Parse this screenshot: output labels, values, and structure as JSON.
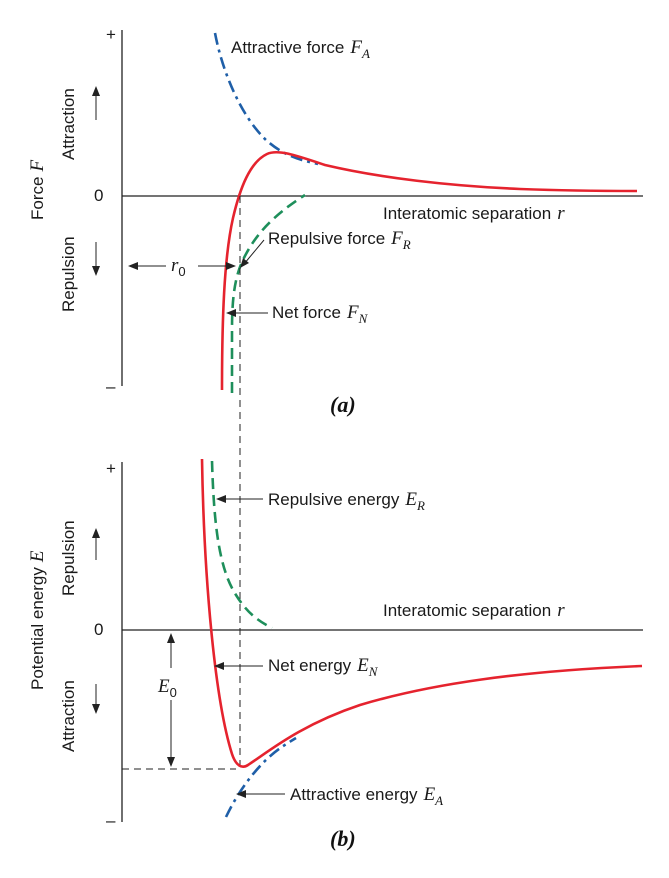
{
  "colors": {
    "net": "#e5232e",
    "attractive": "#1f5fa8",
    "repulsive": "#1e8f5b",
    "axis": "#222222"
  },
  "panel_a": {
    "caption": "(a)",
    "y_axis": {
      "title": "Force",
      "title_symbol": "F",
      "plus": "+",
      "minus": "–",
      "zero": "0",
      "upper_region": "Attraction",
      "lower_region": "Repulsion"
    },
    "x_axis_label": "Interatomic separation",
    "x_axis_symbol": "r",
    "labels": {
      "attractive": {
        "text": "Attractive force",
        "sym": "F",
        "sub": "A"
      },
      "repulsive": {
        "text": "Repulsive force",
        "sym": "F",
        "sub": "R"
      },
      "net": {
        "text": "Net force",
        "sym": "F",
        "sub": "N"
      },
      "r0": {
        "sym": "r",
        "sub": "0"
      }
    }
  },
  "panel_b": {
    "caption": "(b)",
    "y_axis": {
      "title": "Potential energy",
      "title_symbol": "E",
      "plus": "+",
      "minus": "–",
      "zero": "0",
      "upper_region": "Repulsion",
      "lower_region": "Attraction"
    },
    "x_axis_label": "Interatomic separation",
    "x_axis_symbol": "r",
    "labels": {
      "repulsive": {
        "text": "Repulsive energy",
        "sym": "E",
        "sub": "R"
      },
      "net": {
        "text": "Net energy",
        "sym": "E",
        "sub": "N"
      },
      "attractive": {
        "text": "Attractive energy",
        "sym": "E",
        "sub": "A"
      },
      "e0": {
        "sym": "E",
        "sub": "0"
      }
    }
  }
}
